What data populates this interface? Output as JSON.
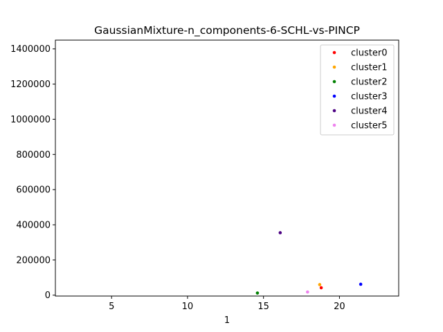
{
  "chart_data": {
    "type": "scatter",
    "title": "GaussianMixture-n_components-6-SCHL-vs-PINCP",
    "xlabel": "1",
    "ylabel": "",
    "xlim": [
      1.3,
      23.9
    ],
    "ylim": [
      -5000,
      1450000
    ],
    "xticks": [
      5,
      10,
      15,
      20
    ],
    "yticks": [
      0,
      200000,
      400000,
      600000,
      800000,
      1000000,
      1200000,
      1400000
    ],
    "grid": false,
    "legend_position": "top-right",
    "series": [
      {
        "name": "cluster0",
        "color": "#ff0000",
        "points": [
          [
            18.8,
            42000
          ]
        ]
      },
      {
        "name": "cluster1",
        "color": "#ffa500",
        "points": [
          [
            18.7,
            60000
          ]
        ]
      },
      {
        "name": "cluster2",
        "color": "#008000",
        "points": [
          [
            14.6,
            12000
          ]
        ]
      },
      {
        "name": "cluster3",
        "color": "#0000ff",
        "points": [
          [
            21.4,
            62000
          ]
        ]
      },
      {
        "name": "cluster4",
        "color": "#4b0082",
        "points": [
          [
            16.1,
            355000
          ]
        ]
      },
      {
        "name": "cluster5",
        "color": "#ee82ee",
        "points": [
          [
            17.9,
            18000
          ]
        ]
      }
    ]
  }
}
